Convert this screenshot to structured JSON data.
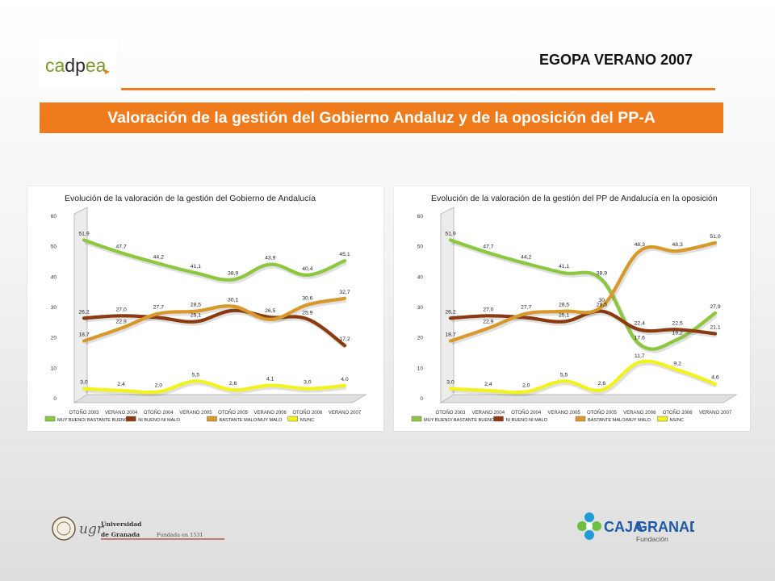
{
  "header": {
    "logo_text": "cadpea",
    "title": "EGOPA VERANO 2007",
    "banner": "Valoración de la gestión del Gobierno Andaluz y de la oposición del PP-A"
  },
  "colors": {
    "accent": "#f07b1d",
    "series_green": "#8dc63f",
    "series_brown": "#8b3a0f",
    "series_orange": "#d9982a",
    "series_yellow": "#f2f21c"
  },
  "chart_data": [
    {
      "type": "line",
      "title": "Evolución de la valoración de la gestión del Gobierno de Andalucía",
      "categories": [
        "OTOÑO 2003",
        "VERANO 2004",
        "OTOÑO 2004",
        "VERANO 2005",
        "OTOÑO 2005",
        "VERANO 2006",
        "OTOÑO 2006",
        "VERANO 2007"
      ],
      "y_ticks": [
        "0",
        "10",
        "20",
        "30",
        "40",
        "50",
        "60"
      ],
      "ylim": [
        0,
        60
      ],
      "grid": false,
      "legend_position": "bottom",
      "series": [
        {
          "name": "MUY BUENO/ BASTANTE BUENO",
          "color": "#8dc63f",
          "values": [
            51.9,
            47.7,
            44.2,
            41.1,
            38.9,
            43.9,
            40.4,
            45.1
          ],
          "labels": [
            "51,9",
            "47,7",
            "44,2",
            "41,1",
            "38,9",
            "43,9",
            "40,4",
            "45,1"
          ]
        },
        {
          "name": "NI BUENO NI MALO",
          "color": "#8b3a0f",
          "values": [
            26.2,
            27.0,
            26.4,
            25.1,
            28.7,
            26.5,
            25.9,
            17.2
          ],
          "labels": [
            "26,2",
            "27,0",
            "",
            "25,1",
            "",
            "26,5",
            "25,9",
            "17,2"
          ]
        },
        {
          "name": "BASTANTE MALO/MUY MALO",
          "color": "#d9982a",
          "values": [
            18.7,
            22.9,
            27.7,
            28.5,
            30.1,
            25.8,
            30.6,
            32.7
          ],
          "labels": [
            "18,7",
            "22,9",
            "27,7",
            "28,5",
            "30,1",
            "",
            "30,6",
            "32,7"
          ]
        },
        {
          "name": "NS/NC",
          "color": "#f2f21c",
          "values": [
            3.0,
            2.4,
            2.0,
            5.5,
            2.6,
            4.1,
            3.0,
            4.0
          ],
          "labels": [
            "3,0",
            "2,4",
            "2,0",
            "5,5",
            "2,6",
            "4,1",
            "3,0",
            "4,0"
          ]
        }
      ]
    },
    {
      "type": "line",
      "title": "Evolución de la valoración de la gestión del PP de Andalucía en la oposición",
      "categories": [
        "OTOÑO 2003",
        "VERANO 2004",
        "OTOÑO 2004",
        "VERANO 2005",
        "OTOÑO 2005",
        "VERANO 2006",
        "OTOÑO 2006",
        "VERANO 2007"
      ],
      "y_ticks": [
        "0",
        "10",
        "20",
        "30",
        "40",
        "50",
        "60"
      ],
      "ylim": [
        0,
        60
      ],
      "grid": false,
      "legend_position": "bottom",
      "series": [
        {
          "name": "MUY BUENO/ BASTANTE BUENO",
          "color": "#8dc63f",
          "values": [
            51.9,
            47.7,
            44.2,
            41.1,
            38.9,
            17.6,
            19.2,
            27.9
          ],
          "labels": [
            "51,9",
            "47,7",
            "44,2",
            "41,1",
            "38,9",
            "17,6",
            "19,2",
            "27,9"
          ]
        },
        {
          "name": "NI BUENO NI MALO",
          "color": "#8b3a0f",
          "values": [
            26.2,
            27.0,
            26.4,
            25.1,
            28.5,
            22.4,
            22.5,
            21.1
          ],
          "labels": [
            "26,2",
            "27,0",
            "",
            "25,1",
            "28,5",
            "22,4",
            "22,5",
            "21,1"
          ]
        },
        {
          "name": "BASTANTE MALO/MUY MALO",
          "color": "#d9982a",
          "values": [
            18.7,
            22.9,
            27.7,
            28.5,
            30.0,
            48.3,
            48.3,
            51.0
          ],
          "labels": [
            "18,7",
            "22,9",
            "27,7",
            "28,5",
            "30",
            "48,3",
            "48,3",
            "51,0"
          ]
        },
        {
          "name": "NS/NC",
          "color": "#f2f21c",
          "values": [
            3.0,
            2.4,
            2.0,
            5.5,
            2.6,
            11.7,
            9.2,
            4.6
          ],
          "labels": [
            "3,0",
            "2,4",
            "2,0",
            "5,5",
            "2,6",
            "11,7",
            "9,2",
            "4,6"
          ]
        }
      ]
    }
  ],
  "footer": {
    "ugr_name_1": "Universidad",
    "ugr_name_2": "de Granada",
    "ugr_founded": "Fundada en 1531",
    "ugr_mark": "ugr",
    "caja_name_1": "CAJA",
    "caja_name_2": "GRANADA",
    "caja_sub": "Fundación"
  }
}
